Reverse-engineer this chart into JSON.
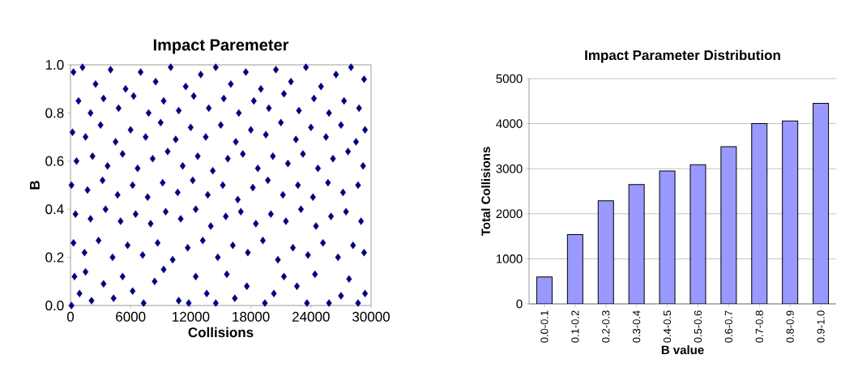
{
  "chart_data": [
    {
      "type": "scatter",
      "title": "Impact Paremeter",
      "xlabel": "Collisions",
      "ylabel": "B",
      "color": "#000080",
      "marker": "diamond",
      "x": [
        300,
        1200,
        2500,
        4000,
        5500,
        7000,
        8500,
        10000,
        11500,
        13000,
        14500,
        16000,
        17500,
        19000,
        20500,
        22000,
        23500,
        25000,
        26500,
        28000,
        29300,
        800,
        2000,
        3300,
        4800,
        6300,
        7800,
        9300,
        10800,
        12300,
        13800,
        15300,
        16800,
        18300,
        19800,
        21300,
        22800,
        24300,
        25800,
        27300,
        28800,
        200,
        1500,
        3000,
        4500,
        6000,
        7500,
        9000,
        10500,
        12000,
        13500,
        15000,
        16500,
        18000,
        19500,
        21000,
        22500,
        24000,
        25500,
        27000,
        28500,
        29400,
        600,
        2200,
        3700,
        5200,
        6700,
        8200,
        9700,
        11200,
        12700,
        14200,
        15700,
        17200,
        18700,
        20200,
        21700,
        23200,
        24700,
        26200,
        27700,
        29200,
        100,
        1700,
        3200,
        4700,
        6200,
        7700,
        9200,
        10700,
        12200,
        13700,
        15200,
        16700,
        18200,
        19700,
        21200,
        22700,
        24200,
        25700,
        27200,
        28700,
        500,
        2000,
        3500,
        5000,
        6500,
        8000,
        9500,
        11000,
        12500,
        14000,
        15500,
        17000,
        18500,
        20000,
        21500,
        23000,
        24500,
        26000,
        27500,
        29000,
        300,
        1400,
        2800,
        4200,
        5700,
        7200,
        8700,
        10200,
        11700,
        13200,
        14700,
        16200,
        17700,
        19200,
        20700,
        22200,
        23700,
        25200,
        26700,
        28200,
        29300,
        100,
        400,
        900,
        1500,
        2100,
        3300,
        4300,
        5200,
        6200,
        7300,
        8400,
        9300,
        10800,
        11800,
        12500,
        13600,
        14500,
        15600,
        16400,
        17600,
        19400,
        20300,
        21300,
        22600,
        23600,
        24400,
        25800,
        27000,
        27800,
        28700,
        29400
      ],
      "values": [
        0.97,
        0.99,
        0.92,
        0.98,
        0.9,
        0.97,
        0.93,
        0.99,
        0.91,
        0.96,
        0.99,
        0.92,
        0.97,
        0.9,
        0.98,
        0.93,
        0.99,
        0.91,
        0.96,
        0.99,
        0.94,
        0.85,
        0.8,
        0.86,
        0.82,
        0.87,
        0.8,
        0.85,
        0.81,
        0.87,
        0.82,
        0.86,
        0.8,
        0.85,
        0.82,
        0.88,
        0.81,
        0.86,
        0.8,
        0.85,
        0.82,
        0.72,
        0.7,
        0.75,
        0.68,
        0.73,
        0.7,
        0.76,
        0.69,
        0.74,
        0.7,
        0.75,
        0.68,
        0.73,
        0.71,
        0.76,
        0.69,
        0.74,
        0.7,
        0.75,
        0.68,
        0.73,
        0.6,
        0.62,
        0.58,
        0.63,
        0.57,
        0.61,
        0.64,
        0.58,
        0.62,
        0.56,
        0.61,
        0.63,
        0.57,
        0.62,
        0.59,
        0.63,
        0.57,
        0.61,
        0.64,
        0.58,
        0.5,
        0.48,
        0.52,
        0.46,
        0.5,
        0.45,
        0.51,
        0.47,
        0.52,
        0.46,
        0.5,
        0.44,
        0.49,
        0.52,
        0.46,
        0.5,
        0.45,
        0.51,
        0.47,
        0.5,
        0.38,
        0.36,
        0.4,
        0.35,
        0.38,
        0.34,
        0.39,
        0.36,
        0.4,
        0.33,
        0.37,
        0.39,
        0.34,
        0.38,
        0.35,
        0.4,
        0.33,
        0.37,
        0.39,
        0.35,
        0.26,
        0.22,
        0.27,
        0.2,
        0.25,
        0.21,
        0.26,
        0.19,
        0.24,
        0.27,
        0.2,
        0.25,
        0.22,
        0.27,
        0.19,
        0.24,
        0.21,
        0.26,
        0.2,
        0.25,
        0.22,
        0.0,
        0.12,
        0.05,
        0.14,
        0.02,
        0.09,
        0.03,
        0.12,
        0.06,
        0.01,
        0.1,
        0.15,
        0.02,
        0.01,
        0.12,
        0.05,
        0.01,
        0.13,
        0.03,
        0.08,
        0.01,
        0.05,
        0.12,
        0.08,
        0.01,
        0.13,
        0.01,
        0.04,
        0.11,
        0.01,
        0.05
      ],
      "xlim": [
        0,
        30000
      ],
      "xticks": [
        0,
        6000,
        12000,
        18000,
        24000,
        30000
      ],
      "ylim": [
        0,
        1
      ],
      "yticks": [
        {
          "value": 0,
          "label": "0.0"
        },
        {
          "value": 0.2,
          "label": "0.2"
        },
        {
          "value": 0.4,
          "label": "0.4"
        },
        {
          "value": 0.6,
          "label": "0.6"
        },
        {
          "value": 0.8,
          "label": "0.8"
        },
        {
          "value": 1,
          "label": "1.0"
        }
      ]
    },
    {
      "type": "bar",
      "title": "Impact Parameter Distribution",
      "xlabel": "B value",
      "ylabel": "Total Collisions",
      "color": "#9999ff",
      "grid": "y",
      "categories": [
        "0.0-0.1",
        "0.1-0.2",
        "0.2-0.3",
        "0.3-0.4",
        "0.4-0.5",
        "0.5-0.6",
        "0.6-0.7",
        "0.7-0.8",
        "0.8-0.9",
        "0.9-1.0"
      ],
      "values": [
        600,
        1540,
        2290,
        2650,
        2950,
        3090,
        3490,
        4000,
        4060,
        4450
      ],
      "ylim": [
        0,
        5000
      ],
      "yticks": [
        0,
        1000,
        2000,
        3000,
        4000,
        5000
      ]
    }
  ]
}
